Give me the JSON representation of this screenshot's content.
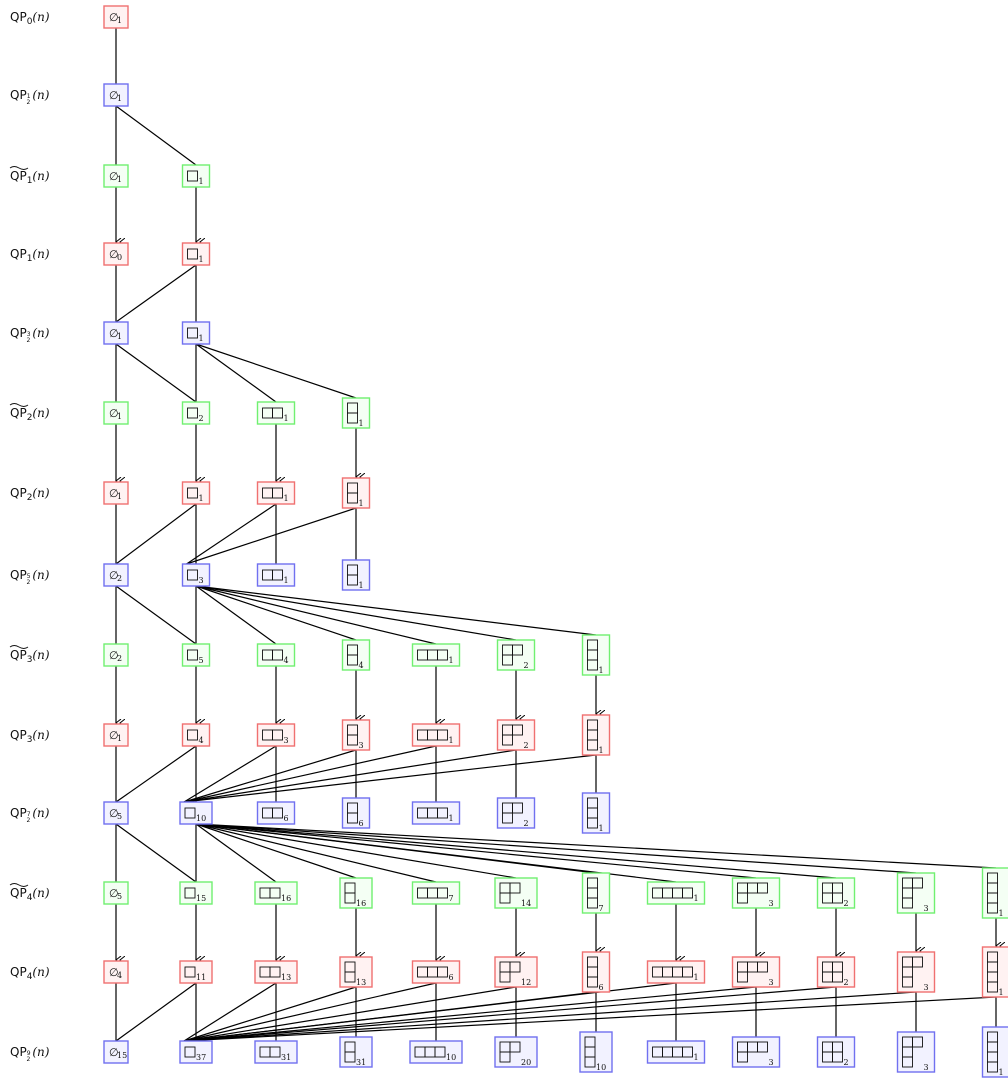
{
  "rows": [
    {
      "label": "QP",
      "tilde": false,
      "sub": "0",
      "arg": "(n)"
    },
    {
      "label": "QP",
      "tilde": false,
      "frac": [
        "1",
        "2"
      ],
      "arg": "(n)"
    },
    {
      "label": "QP",
      "tilde": true,
      "sub": "1",
      "arg": "(n)"
    },
    {
      "label": "QP",
      "tilde": false,
      "sub": "1",
      "arg": "(n)"
    },
    {
      "label": "QP",
      "tilde": false,
      "frac": [
        "3",
        "2"
      ],
      "arg": "(n)"
    },
    {
      "label": "QP",
      "tilde": true,
      "sub": "2",
      "arg": "(n)"
    },
    {
      "label": "QP",
      "tilde": false,
      "sub": "2",
      "arg": "(n)"
    },
    {
      "label": "QP",
      "tilde": false,
      "frac": [
        "5",
        "2"
      ],
      "arg": "(n)"
    },
    {
      "label": "QP",
      "tilde": true,
      "sub": "3",
      "arg": "(n)"
    },
    {
      "label": "QP",
      "tilde": false,
      "sub": "3",
      "arg": "(n)"
    },
    {
      "label": "QP",
      "tilde": false,
      "frac": [
        "7",
        "2"
      ],
      "arg": "(n)"
    },
    {
      "label": "QP",
      "tilde": true,
      "sub": "4",
      "arg": "(n)"
    },
    {
      "label": "QP",
      "tilde": false,
      "sub": "4",
      "arg": "(n)"
    },
    {
      "label": "QP",
      "tilde": false,
      "frac": [
        "9",
        "2"
      ],
      "arg": "(n)"
    }
  ],
  "empty_symbol": "∅",
  "colors": {
    "red": "#f07070",
    "red_fill": "#fff2f2",
    "blue": "#7070f0",
    "blue_fill": "#f2f2ff",
    "green": "#70f070",
    "green_fill": "#f4fff4",
    "edge": "#000000"
  },
  "shapes": {
    "a": [
      1
    ],
    "b": [
      2
    ],
    "c": [
      1,
      1
    ],
    "d": [
      3
    ],
    "e": [
      2,
      1
    ],
    "f": [
      1,
      1,
      1
    ],
    "g": [
      4
    ],
    "h": [
      3,
      1
    ],
    "i": [
      2,
      2
    ],
    "j": [
      2,
      1,
      1
    ],
    "k": [
      1,
      1,
      1,
      1
    ]
  },
  "nodes": [
    {
      "r": 0,
      "c": 0,
      "s": "",
      "n": "1"
    },
    {
      "r": 1,
      "c": 0,
      "s": "",
      "n": "1"
    },
    {
      "r": 2,
      "c": 0,
      "s": "",
      "n": "1"
    },
    {
      "r": 2,
      "c": 1,
      "s": "a",
      "n": "1"
    },
    {
      "r": 3,
      "c": 0,
      "s": "",
      "n": "0"
    },
    {
      "r": 3,
      "c": 1,
      "s": "a",
      "n": "1"
    },
    {
      "r": 4,
      "c": 0,
      "s": "",
      "n": "1"
    },
    {
      "r": 4,
      "c": 1,
      "s": "a",
      "n": "1"
    },
    {
      "r": 5,
      "c": 0,
      "s": "",
      "n": "1"
    },
    {
      "r": 5,
      "c": 1,
      "s": "a",
      "n": "2"
    },
    {
      "r": 5,
      "c": 2,
      "s": "b",
      "n": "1"
    },
    {
      "r": 5,
      "c": 3,
      "s": "c",
      "n": "1"
    },
    {
      "r": 6,
      "c": 0,
      "s": "",
      "n": "1"
    },
    {
      "r": 6,
      "c": 1,
      "s": "a",
      "n": "1"
    },
    {
      "r": 6,
      "c": 2,
      "s": "b",
      "n": "1"
    },
    {
      "r": 6,
      "c": 3,
      "s": "c",
      "n": "1"
    },
    {
      "r": 7,
      "c": 0,
      "s": "",
      "n": "2"
    },
    {
      "r": 7,
      "c": 1,
      "s": "a",
      "n": "3"
    },
    {
      "r": 7,
      "c": 2,
      "s": "b",
      "n": "1"
    },
    {
      "r": 7,
      "c": 3,
      "s": "c",
      "n": "1"
    },
    {
      "r": 8,
      "c": 0,
      "s": "",
      "n": "2"
    },
    {
      "r": 8,
      "c": 1,
      "s": "a",
      "n": "5"
    },
    {
      "r": 8,
      "c": 2,
      "s": "b",
      "n": "4"
    },
    {
      "r": 8,
      "c": 3,
      "s": "c",
      "n": "4"
    },
    {
      "r": 8,
      "c": 4,
      "s": "d",
      "n": "1"
    },
    {
      "r": 8,
      "c": 5,
      "s": "e",
      "n": "2"
    },
    {
      "r": 8,
      "c": 6,
      "s": "f",
      "n": "1"
    },
    {
      "r": 9,
      "c": 0,
      "s": "",
      "n": "1"
    },
    {
      "r": 9,
      "c": 1,
      "s": "a",
      "n": "4"
    },
    {
      "r": 9,
      "c": 2,
      "s": "b",
      "n": "3"
    },
    {
      "r": 9,
      "c": 3,
      "s": "c",
      "n": "3"
    },
    {
      "r": 9,
      "c": 4,
      "s": "d",
      "n": "1"
    },
    {
      "r": 9,
      "c": 5,
      "s": "e",
      "n": "2"
    },
    {
      "r": 9,
      "c": 6,
      "s": "f",
      "n": "1"
    },
    {
      "r": 10,
      "c": 0,
      "s": "",
      "n": "5"
    },
    {
      "r": 10,
      "c": 1,
      "s": "a",
      "n": "10"
    },
    {
      "r": 10,
      "c": 2,
      "s": "b",
      "n": "6"
    },
    {
      "r": 10,
      "c": 3,
      "s": "c",
      "n": "6"
    },
    {
      "r": 10,
      "c": 4,
      "s": "d",
      "n": "1"
    },
    {
      "r": 10,
      "c": 5,
      "s": "e",
      "n": "2"
    },
    {
      "r": 10,
      "c": 6,
      "s": "f",
      "n": "1"
    },
    {
      "r": 11,
      "c": 0,
      "s": "",
      "n": "5"
    },
    {
      "r": 11,
      "c": 1,
      "s": "a",
      "n": "15"
    },
    {
      "r": 11,
      "c": 2,
      "s": "b",
      "n": "16"
    },
    {
      "r": 11,
      "c": 3,
      "s": "c",
      "n": "16"
    },
    {
      "r": 11,
      "c": 4,
      "s": "d",
      "n": "7"
    },
    {
      "r": 11,
      "c": 5,
      "s": "e",
      "n": "14"
    },
    {
      "r": 11,
      "c": 6,
      "s": "f",
      "n": "7"
    },
    {
      "r": 11,
      "c": 7,
      "s": "g",
      "n": "1"
    },
    {
      "r": 11,
      "c": 8,
      "s": "h",
      "n": "3"
    },
    {
      "r": 11,
      "c": 9,
      "s": "i",
      "n": "2"
    },
    {
      "r": 11,
      "c": 10,
      "s": "j",
      "n": "3"
    },
    {
      "r": 11,
      "c": 11,
      "s": "k",
      "n": "1"
    },
    {
      "r": 12,
      "c": 0,
      "s": "",
      "n": "4"
    },
    {
      "r": 12,
      "c": 1,
      "s": "a",
      "n": "11"
    },
    {
      "r": 12,
      "c": 2,
      "s": "b",
      "n": "13"
    },
    {
      "r": 12,
      "c": 3,
      "s": "c",
      "n": "13"
    },
    {
      "r": 12,
      "c": 4,
      "s": "d",
      "n": "6"
    },
    {
      "r": 12,
      "c": 5,
      "s": "e",
      "n": "12"
    },
    {
      "r": 12,
      "c": 6,
      "s": "f",
      "n": "6"
    },
    {
      "r": 12,
      "c": 7,
      "s": "g",
      "n": "1"
    },
    {
      "r": 12,
      "c": 8,
      "s": "h",
      "n": "3"
    },
    {
      "r": 12,
      "c": 9,
      "s": "i",
      "n": "2"
    },
    {
      "r": 12,
      "c": 10,
      "s": "j",
      "n": "3"
    },
    {
      "r": 12,
      "c": 11,
      "s": "k",
      "n": "1"
    },
    {
      "r": 13,
      "c": 0,
      "s": "",
      "n": "15"
    },
    {
      "r": 13,
      "c": 1,
      "s": "a",
      "n": "37"
    },
    {
      "r": 13,
      "c": 2,
      "s": "b",
      "n": "31"
    },
    {
      "r": 13,
      "c": 3,
      "s": "c",
      "n": "31"
    },
    {
      "r": 13,
      "c": 4,
      "s": "d",
      "n": "10"
    },
    {
      "r": 13,
      "c": 5,
      "s": "e",
      "n": "20"
    },
    {
      "r": 13,
      "c": 6,
      "s": "f",
      "n": "10"
    },
    {
      "r": 13,
      "c": 7,
      "s": "g",
      "n": "1"
    },
    {
      "r": 13,
      "c": 8,
      "s": "h",
      "n": "3"
    },
    {
      "r": 13,
      "c": 9,
      "s": "i",
      "n": "2"
    },
    {
      "r": 13,
      "c": 10,
      "s": "j",
      "n": "3"
    },
    {
      "r": 13,
      "c": 11,
      "s": "k",
      "n": "1"
    }
  ]
}
